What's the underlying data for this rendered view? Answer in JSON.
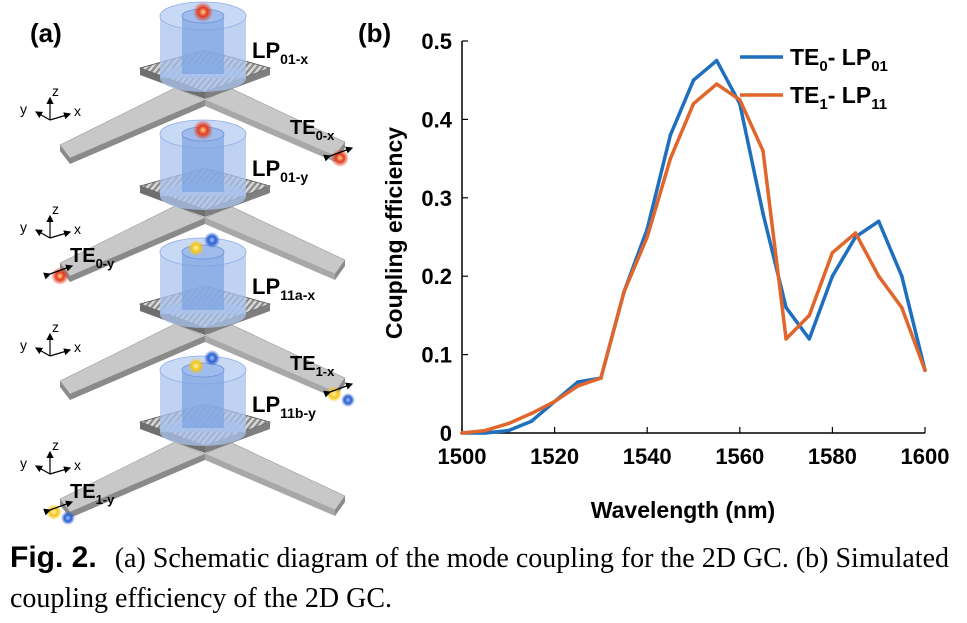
{
  "figure": {
    "panel_a_label": "(a)",
    "panel_b_label": "(b)",
    "panel_a": {
      "stages": [
        {
          "fiber_mode": "LP",
          "fiber_sub": "01-x",
          "waveguide_mode": "TE",
          "waveguide_sub": "0-x",
          "port_side": "right"
        },
        {
          "fiber_mode": "LP",
          "fiber_sub": "01-y",
          "waveguide_mode": "TE",
          "waveguide_sub": "0-y",
          "port_side": "left"
        },
        {
          "fiber_mode": "LP",
          "fiber_sub": "11a-x",
          "waveguide_mode": "TE",
          "waveguide_sub": "1-x",
          "port_side": "right"
        },
        {
          "fiber_mode": "LP",
          "fiber_sub": "11b-y",
          "waveguide_mode": "TE",
          "waveguide_sub": "1-y",
          "port_side": "left"
        }
      ],
      "axis_labels": {
        "x": "x",
        "y": "y",
        "z": "z"
      }
    }
  },
  "chart_data": {
    "type": "line",
    "xlabel": "Wavelength (nm)",
    "ylabel": "Coupling efficiency",
    "xlim": [
      1500,
      1600
    ],
    "ylim": [
      0,
      0.5
    ],
    "xticks": [
      "1500",
      "1520",
      "1540",
      "1560",
      "1580",
      "1600"
    ],
    "yticks": [
      "0",
      "0.1",
      "0.2",
      "0.3",
      "0.4",
      "0.5"
    ],
    "legend_position": "top-right",
    "grid": false,
    "series": [
      {
        "legend_main": "TE",
        "legend_sub1": "0",
        "legend_mid": "- LP",
        "legend_sub2": "01",
        "color": "#1f6fbf",
        "x": [
          1500,
          1505,
          1510,
          1515,
          1520,
          1525,
          1530,
          1535,
          1540,
          1545,
          1550,
          1555,
          1560,
          1565,
          1570,
          1575,
          1580,
          1585,
          1590,
          1595,
          1600
        ],
        "y": [
          0.0,
          0.0,
          0.003,
          0.015,
          0.04,
          0.065,
          0.07,
          0.18,
          0.26,
          0.38,
          0.45,
          0.475,
          0.42,
          0.28,
          0.16,
          0.12,
          0.2,
          0.25,
          0.27,
          0.2,
          0.08
        ]
      },
      {
        "legend_main": "TE",
        "legend_sub1": "1",
        "legend_mid": "- LP",
        "legend_sub2": "11",
        "color": "#e0662b",
        "x": [
          1500,
          1505,
          1510,
          1515,
          1520,
          1525,
          1530,
          1535,
          1540,
          1545,
          1550,
          1555,
          1560,
          1565,
          1570,
          1575,
          1580,
          1585,
          1590,
          1595,
          1600
        ],
        "y": [
          0.0,
          0.003,
          0.012,
          0.025,
          0.04,
          0.06,
          0.07,
          0.18,
          0.25,
          0.35,
          0.42,
          0.445,
          0.425,
          0.36,
          0.12,
          0.15,
          0.23,
          0.255,
          0.2,
          0.16,
          0.08
        ]
      }
    ]
  },
  "caption": {
    "label": "Fig. 2.",
    "text": "(a) Schematic diagram of the mode coupling for the 2D GC. (b) Simulated coupling efficiency of the 2D GC."
  },
  "colors": {
    "fiber_fill": "#a9c3ee",
    "fiber_core": "#7ba3e3",
    "waveguide_top": "#c8c8c8",
    "waveguide_side": "#8a8a8a",
    "spot_red": "#e23a1e",
    "spot_yellow": "#f5c518",
    "spot_blue": "#2a5fcf"
  }
}
